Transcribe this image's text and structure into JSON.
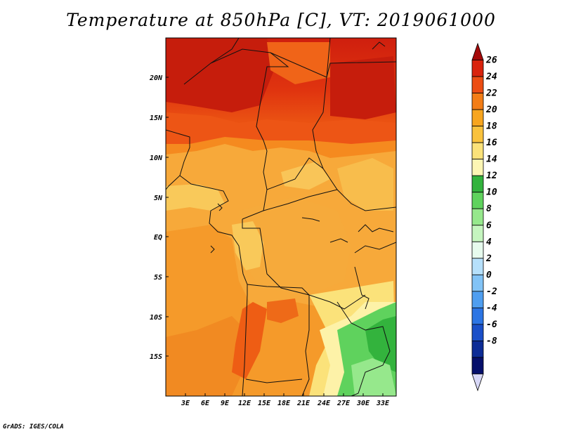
{
  "map": {
    "title": "Temperature at 850hPa [C], VT: 2019061000",
    "credit": "GrADS: IGES/COLA",
    "lat_labels": [
      "20N",
      "15N",
      "10N",
      "5N",
      "EQ",
      "5S",
      "10S",
      "15S"
    ],
    "lon_labels": [
      "3E",
      "6E",
      "9E",
      "12E",
      "15E",
      "18E",
      "21E",
      "24E",
      "27E",
      "30E",
      "33E"
    ]
  },
  "legend": {
    "labels": [
      "26",
      "24",
      "22",
      "20",
      "18",
      "16",
      "14",
      "12",
      "10",
      "8",
      "6",
      "4",
      "2",
      "0",
      "-2",
      "-4",
      "-6",
      "-8"
    ],
    "colors": [
      "#a50a0a",
      "#d9230d",
      "#ec4d13",
      "#f37d16",
      "#f7a51f",
      "#f9c23d",
      "#fbe27a",
      "#fdf6b4",
      "#33b33d",
      "#5fd25d",
      "#96e88c",
      "#c5f5bf",
      "#e7fbee",
      "#b6e0fb",
      "#82c3f6",
      "#4f9ef0",
      "#2c75e4",
      "#1a4fc8",
      "#0d2c96",
      "#06106b",
      "#d8d8f7"
    ]
  }
}
